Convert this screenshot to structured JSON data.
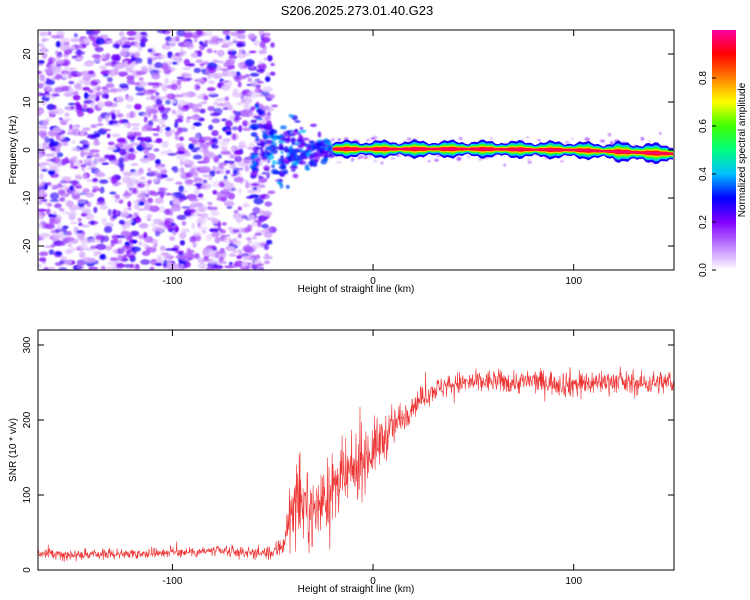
{
  "title": "S206.2025.273.01.40.G23",
  "chart_data": [
    {
      "type": "heatmap",
      "xlabel": "Height of straight line (km)",
      "ylabel": "Frequency (Hz)",
      "xlim": [
        -167,
        150
      ],
      "ylim": [
        -25,
        25
      ],
      "xticks": [
        -100,
        0,
        100
      ],
      "xtick_labels": [
        "-100",
        "0",
        "100"
      ],
      "yticks": [
        -20,
        -10,
        0,
        10,
        20
      ],
      "ytick_labels": [
        "-20",
        "-10",
        "0",
        "10",
        "20"
      ],
      "grid": false,
      "description_regions": [
        {
          "x_range": [
            -167,
            -52
          ],
          "note": "broadband noise across all frequencies"
        },
        {
          "x_range": [
            -52,
            -20
          ],
          "note": "transition, signal emerging near 0 Hz"
        },
        {
          "x_range": [
            -20,
            150
          ],
          "note": "strong narrow-band signal near 0 Hz"
        }
      ],
      "signal_frequency_hz": [
        [
          -20,
          0.2
        ],
        [
          50,
          0.2
        ],
        [
          100,
          0.0
        ],
        [
          150,
          -0.8
        ]
      ],
      "colorbar": {
        "label": "Normalized spectral amplitude",
        "range": [
          0.0,
          1.0
        ],
        "ticks": [
          0.0,
          0.2,
          0.4,
          0.6,
          0.8
        ],
        "tick_labels": [
          "0.0",
          "0.2",
          "0.4",
          "0.6",
          "0.8"
        ],
        "colormap": [
          "#ffffff",
          "#c080ff",
          "#8000ff",
          "#0000ff",
          "#00c0ff",
          "#00ff80",
          "#40ff00",
          "#ffff00",
          "#ff8000",
          "#ff0000",
          "#ff00a0"
        ]
      }
    },
    {
      "type": "line",
      "xlabel": "Height of straight line (km)",
      "ylabel": "SNR (10 * v/v)",
      "xlim": [
        -167,
        150
      ],
      "ylim": [
        0,
        320
      ],
      "xticks": [
        -100,
        0,
        100
      ],
      "xtick_labels": [
        "-100",
        "0",
        "100"
      ],
      "yticks": [
        0,
        100,
        200,
        300
      ],
      "ytick_labels": [
        "0",
        "100",
        "200",
        "300"
      ],
      "grid": false,
      "series": [
        {
          "name": "SNR",
          "color": "#ee3333",
          "x": [
            -167,
            -150,
            -120,
            -100,
            -80,
            -60,
            -50,
            -45,
            -40,
            -35,
            -30,
            -25,
            -20,
            -15,
            -10,
            -5,
            0,
            5,
            10,
            15,
            20,
            25,
            30,
            40,
            50,
            60,
            70,
            80,
            90,
            100,
            110,
            120,
            130,
            140,
            150
          ],
          "y": [
            22,
            20,
            22,
            24,
            25,
            23,
            22,
            35,
            80,
            90,
            75,
            95,
            105,
            120,
            130,
            150,
            160,
            175,
            190,
            205,
            220,
            230,
            240,
            248,
            250,
            252,
            250,
            252,
            250,
            248,
            250,
            252,
            248,
            250,
            250
          ],
          "noise": [
            6,
            6,
            6,
            6,
            7,
            7,
            8,
            18,
            40,
            45,
            40,
            40,
            45,
            40,
            40,
            40,
            35,
            30,
            25,
            20,
            15,
            14,
            14,
            14,
            14,
            14,
            14,
            15,
            15,
            18,
            15,
            14,
            14,
            14,
            15
          ]
        }
      ]
    }
  ]
}
